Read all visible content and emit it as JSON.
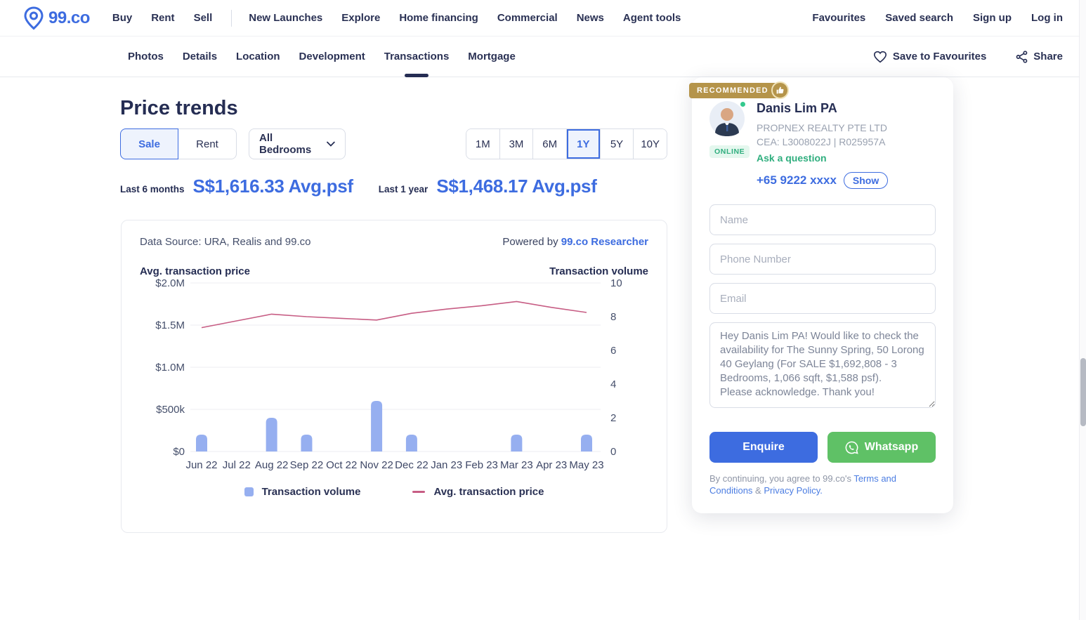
{
  "colors": {
    "accent_blue": "#3d6ce0",
    "navy": "#252d53",
    "green": "#2fae7e",
    "gold": "#b5944a",
    "bar_blue": "#96aff0",
    "line_pink": "#c75d84"
  },
  "header": {
    "logo_text": "99.co",
    "nav": [
      "Buy",
      "Rent",
      "Sell",
      "New Launches",
      "Explore",
      "Home financing",
      "Commercial",
      "News",
      "Agent tools"
    ],
    "right": [
      "Favourites",
      "Saved search",
      "Sign up",
      "Log in"
    ]
  },
  "subnav": {
    "tabs": [
      "Photos",
      "Details",
      "Location",
      "Development",
      "Transactions",
      "Mortgage"
    ],
    "active_tab": "Transactions",
    "save_label": "Save to Favourites",
    "share_label": "Share"
  },
  "price_trends": {
    "title": "Price trends",
    "sale_label": "Sale",
    "rent_label": "Rent",
    "bedrooms_filter": "All Bedrooms",
    "ranges": [
      "1M",
      "3M",
      "6M",
      "1Y",
      "5Y",
      "10Y"
    ],
    "active_range": "1Y",
    "stats": [
      {
        "label": "Last 6 months",
        "value": "S$1,616.33 Avg.psf"
      },
      {
        "label": "Last 1 year",
        "value": "S$1,468.17 Avg.psf"
      }
    ]
  },
  "chart_card": {
    "data_source": "Data Source: URA, Realis and 99.co",
    "powered_by": "Powered by ",
    "powered_by_link": "99.co Researcher"
  },
  "chart_data": {
    "type": "bar+line",
    "categories": [
      "Jun 22",
      "Jul 22",
      "Aug 22",
      "Sep 22",
      "Oct 22",
      "Nov 22",
      "Dec 22",
      "Jan 23",
      "Feb 23",
      "Mar 23",
      "Apr 23",
      "May 23"
    ],
    "series": [
      {
        "name": "Transaction volume",
        "type": "bar",
        "axis": "right",
        "color": "#96aff0",
        "values": [
          1,
          0,
          2,
          1,
          0,
          3,
          1,
          0,
          0,
          1,
          0,
          1
        ]
      },
      {
        "name": "Avg. transaction price",
        "type": "line",
        "axis": "left",
        "color": "#c75d84",
        "values": [
          1470000,
          1550000,
          1630000,
          1600000,
          1580000,
          1560000,
          1640000,
          1690000,
          1730000,
          1780000,
          1710000,
          1650000
        ]
      }
    ],
    "left_axis": {
      "title": "Avg. transaction price",
      "ticks": [
        "$2.0M",
        "$1.5M",
        "$1.0M",
        "$500k",
        "$0"
      ],
      "min": 0,
      "max": 2000000
    },
    "right_axis": {
      "title": "Transaction volume",
      "ticks": [
        "10",
        "8",
        "6",
        "4",
        "2",
        "0"
      ],
      "min": 0,
      "max": 10
    },
    "grid": "horizontal",
    "legend_position": "bottom"
  },
  "agent_card": {
    "recommended_label": "RECOMMENDED",
    "online_label": "ONLINE",
    "name": "Danis Lim PA",
    "agency": "PROPNEX REALTY PTE LTD",
    "cea": "CEA: L3008022J | R025957A",
    "ask_question": "Ask a question",
    "phone": "+65 9222 xxxx",
    "show_label": "Show",
    "form": {
      "name_placeholder": "Name",
      "phone_placeholder": "Phone Number",
      "email_placeholder": "Email",
      "message": "Hey Danis Lim PA! Would like to check the availability for The Sunny Spring, 50 Lorong 40 Geylang (For SALE $1,692,808 - 3 Bedrooms, 1,066 sqft, $1,588 psf).\nPlease acknowledge. Thank you!"
    },
    "enquire_label": "Enquire",
    "whatsapp_label": "Whatsapp",
    "terms_prefix": "By continuing, you agree to 99.co's ",
    "terms_link": "Terms and Conditions",
    "terms_amp": " & ",
    "privacy_link": "Privacy Policy."
  }
}
